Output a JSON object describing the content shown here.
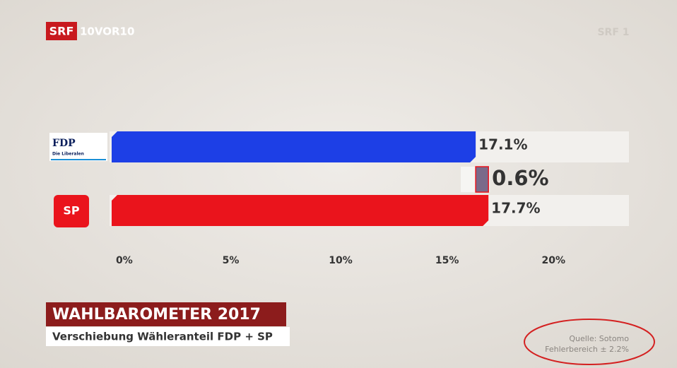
{
  "header": {
    "logo_srf": "SRF",
    "logo_show": "10VOR10",
    "channel_logo": "SRF 1"
  },
  "chart_data": {
    "type": "hbar",
    "categories": [
      "FDP",
      "SP"
    ],
    "category_sublabels": [
      "Die Liberalen",
      null
    ],
    "values": [
      17.1,
      17.7
    ],
    "value_labels": [
      "17.1%",
      "17.7%"
    ],
    "colors": [
      "#1d3fe6",
      "#ea141c"
    ],
    "difference": {
      "value": 0.6,
      "label": "0.6%"
    },
    "xlim": [
      0,
      24.3
    ],
    "xticks": [
      {
        "value": 0,
        "label": "0%"
      },
      {
        "value": 5,
        "label": "5%"
      },
      {
        "value": 10,
        "label": "10%"
      },
      {
        "value": 15,
        "label": "15%"
      },
      {
        "value": 20,
        "label": "20%"
      }
    ],
    "title": "WAHLBAROMETER 2017",
    "subtitle": "Verschiebung Wähleranteil FDP + SP",
    "source": "Quelle: Sotomo",
    "note": "Fehlerbereich ± 2.2%"
  }
}
